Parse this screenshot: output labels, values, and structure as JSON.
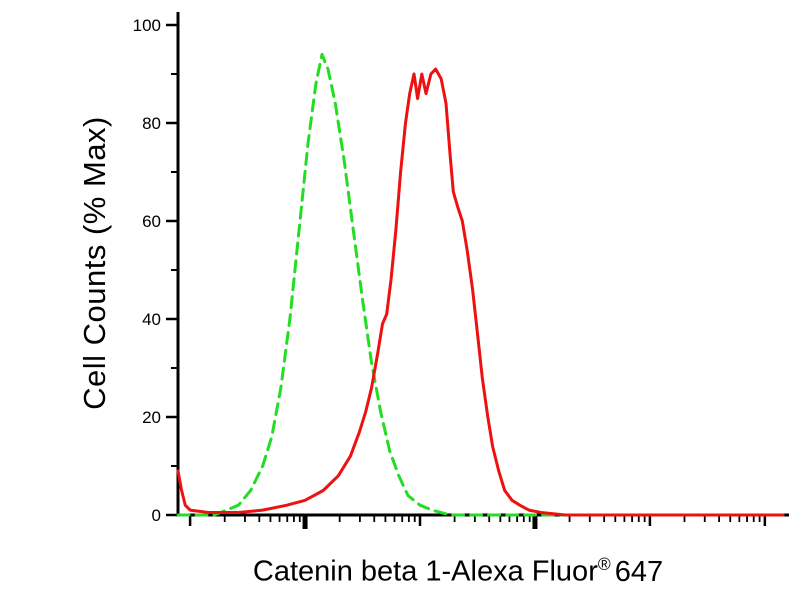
{
  "figure": {
    "background": "#ffffff",
    "axis_color": "#000000"
  },
  "chart_data": {
    "type": "line",
    "chart_kind": "flow cytometry overlay histogram",
    "title": "",
    "xlabel": "Catenin beta 1-Alexa Fluor® 647",
    "xlabel_parts": {
      "main": "Catenin beta 1-Alexa Fluor",
      "registered_mark": "®",
      "suffix": "647"
    },
    "ylabel": "Cell Counts (% Max)",
    "x_axis": {
      "scale": "log",
      "tick_labels_shown": false,
      "decades": 5
    },
    "y_axis": {
      "min": 0,
      "max": 100,
      "major_ticks": [
        0,
        20,
        40,
        60,
        80,
        100
      ],
      "minor_ticks": [
        10,
        30,
        50,
        70,
        90
      ]
    },
    "legend_shown": false,
    "grid": false,
    "x_units": "normalized 0-1 position along unlabeled log x-axis",
    "series": [
      {
        "id": "green-dashed",
        "name": "green dashed curve",
        "color": "#22dd22",
        "style": "dashed",
        "x": [
          0.0,
          0.06,
          0.08,
          0.1,
          0.12,
          0.14,
          0.155,
          0.17,
          0.185,
          0.2,
          0.215,
          0.228,
          0.238,
          0.248,
          0.26,
          0.275,
          0.29,
          0.305,
          0.32,
          0.335,
          0.35,
          0.365,
          0.38,
          0.4,
          0.42,
          0.45,
          0.6,
          1.0
        ],
        "y": [
          0,
          0,
          1,
          2,
          5,
          10,
          16,
          26,
          40,
          58,
          76,
          88,
          94,
          91,
          84,
          72,
          58,
          44,
          31,
          21,
          13,
          8,
          4,
          2,
          1,
          0,
          0,
          0
        ]
      },
      {
        "id": "red-solid",
        "name": "red solid curve",
        "color": "#ee1111",
        "style": "solid",
        "x": [
          0.0,
          0.006,
          0.012,
          0.02,
          0.05,
          0.1,
          0.14,
          0.18,
          0.21,
          0.24,
          0.265,
          0.285,
          0.3,
          0.31,
          0.32,
          0.33,
          0.338,
          0.345,
          0.352,
          0.36,
          0.368,
          0.376,
          0.383,
          0.39,
          0.396,
          0.403,
          0.41,
          0.418,
          0.426,
          0.435,
          0.443,
          0.45,
          0.455,
          0.462,
          0.47,
          0.478,
          0.487,
          0.495,
          0.503,
          0.512,
          0.52,
          0.53,
          0.54,
          0.552,
          0.565,
          0.58,
          0.6,
          0.64,
          1.0
        ],
        "y": [
          9,
          5,
          2,
          1,
          0.5,
          0.5,
          1,
          2,
          3,
          5,
          8,
          12,
          17,
          21,
          26,
          33,
          39,
          41,
          48,
          58,
          70,
          80,
          86,
          90,
          85,
          90,
          86,
          90,
          91,
          89,
          84,
          73,
          66,
          63,
          60,
          54,
          46,
          37,
          28,
          20,
          14,
          9,
          5,
          3,
          2,
          1,
          0.5,
          0,
          0
        ]
      }
    ]
  }
}
